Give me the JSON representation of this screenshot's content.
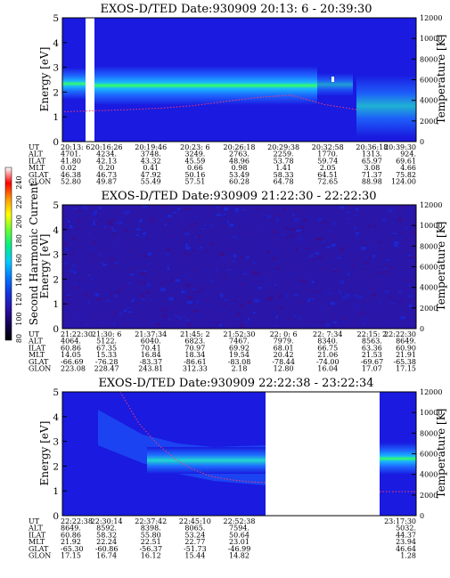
{
  "colors": {
    "background": "#1a1ae0",
    "bright_band": "#33ff66",
    "band_glow": "#19b6ff",
    "temperature_dots": "#ff3b6b",
    "frame": "#000000"
  },
  "colorbar": {
    "label": "Second Harmonic Current",
    "ticks": [
      "240",
      "220",
      "200",
      "180",
      "160",
      "140",
      "120",
      "100",
      "80"
    ],
    "stops": [
      "#ffffff",
      "#ff0000",
      "#ff9900",
      "#ffff00",
      "#66ff33",
      "#00ee88",
      "#00ccff",
      "#0077ff",
      "#1533dd",
      "#2a11a8",
      "#160050",
      "#000000"
    ]
  },
  "chart_data": [
    {
      "type": "heatmap",
      "title": "EXOS-D/TED   Date:930909  20:13: 6 - 20:39:30",
      "ylabel": "Energy [eV]",
      "y2label": "Temperature [K]",
      "ylim": [
        0,
        5
      ],
      "y2lim": [
        0,
        12000
      ],
      "yticks": [
        "0",
        "1",
        "2",
        "3",
        "4",
        "5"
      ],
      "y2ticks": [
        "0",
        "2000",
        "4000",
        "6000",
        "8000",
        "10000",
        "12000"
      ],
      "band_center_ev": 2.2,
      "temperature_trace_k": [
        2900,
        3000,
        3100,
        3250,
        3500,
        3900,
        4300,
        4500,
        3600,
        3100
      ],
      "orbit_table": {
        "labels": [
          "UT",
          "ALT",
          "ILAT",
          "MLT",
          "GLAT",
          "GLON"
        ],
        "columns": [
          [
            "20:13: 6",
            "4701.",
            "41.80",
            "0.02",
            "46.38",
            "52.80"
          ],
          [
            "20:16:26",
            "4234.",
            "42.13",
            "0.20",
            "46.73",
            "49.87"
          ],
          [
            "20:19:46",
            "3748.",
            "43.32",
            "0.41",
            "47.92",
            "55.49"
          ],
          [
            "20:23: 6",
            "3249.",
            "45.59",
            "0.66",
            "50.16",
            "57.51"
          ],
          [
            "20:26:18",
            "2763.",
            "48.96",
            "0.98",
            "53.49",
            "60.28"
          ],
          [
            "20:29:38",
            "2259.",
            "53.78",
            "1.41",
            "58.33",
            "64.78"
          ],
          [
            "20:32:58",
            "1770.",
            "59.74",
            "2.05",
            "64.51",
            "72.65"
          ],
          [
            "20:36:18",
            "1313.",
            "65.97",
            "3.08",
            "71.37",
            "88.98"
          ],
          [
            "20:39:30",
            "924.",
            "69.61",
            "4.66",
            "75.82",
            "124.00"
          ]
        ]
      }
    },
    {
      "type": "heatmap",
      "title": "EXOS-D/TED   Date:930909  21:22:30 - 22:22:30",
      "ylabel": "Energy [eV]",
      "y2label": "Temperature [K]",
      "ylim": [
        0,
        5
      ],
      "y2lim": [
        0,
        12000
      ],
      "yticks": [
        "0",
        "1",
        "2",
        "3",
        "4",
        "5"
      ],
      "y2ticks": [
        "0",
        "2000",
        "4000",
        "6000",
        "8000",
        "10000",
        "12000"
      ],
      "orbit_table": {
        "labels": [
          "UT",
          "ALT",
          "ILAT",
          "MLT",
          "GLAT",
          "GLON"
        ],
        "columns": [
          [
            "21:22:30",
            "4064.",
            "60.86",
            "14.05",
            "-66.69",
            "223.08"
          ],
          [
            "21:30: 6",
            "5122.",
            "67.35",
            "15.33",
            "-76.28",
            "228.47"
          ],
          [
            "21:37:34",
            "6040.",
            "70.41",
            "16.84",
            "-83.37",
            "243.81"
          ],
          [
            "21:45: 2",
            "6823.",
            "70.97",
            "18.34",
            "-86.61",
            "312.33"
          ],
          [
            "21:52:30",
            "7467.",
            "69.92",
            "19.54",
            "-83.08",
            "2.18"
          ],
          [
            "22: 0: 6",
            "7979.",
            "68.01",
            "20.42",
            "-78.44",
            "12.80"
          ],
          [
            "22: 7:34",
            "8340.",
            "66.75",
            "21.06",
            "-74.00",
            "16.04"
          ],
          [
            "22:15: 2",
            "8563.",
            "63.36",
            "21.53",
            "-69.67",
            "17.07"
          ],
          [
            "22:22:30",
            "8649.",
            "60.90",
            "21.91",
            "-65.38",
            "17.15"
          ]
        ]
      }
    },
    {
      "type": "heatmap",
      "title": "EXOS-D/TED   Date:930909  22:22:38 - 23:22:34",
      "ylabel": "Energy [eV]",
      "y2label": "Temperature [K]",
      "ylim": [
        0,
        5
      ],
      "y2lim": [
        0,
        12000
      ],
      "yticks": [
        "0",
        "1",
        "2",
        "3",
        "4",
        "5"
      ],
      "y2ticks": [
        "0",
        "2000",
        "4000",
        "6000",
        "8000",
        "10000",
        "12000"
      ],
      "band_center_ev": 2.3,
      "temperature_trace_k": [
        12000,
        9000,
        7000,
        5500,
        4500,
        3800,
        3500,
        3300,
        3200
      ],
      "orbit_table": {
        "labels": [
          "UT",
          "ALT",
          "ILAT",
          "MLT",
          "GLAT",
          "GLON"
        ],
        "columns": [
          [
            "22:22:38",
            "8649.",
            "60.86",
            "21.92",
            "-65.30",
            "17.15"
          ],
          [
            "22:30:14",
            "8592.",
            "58.32",
            "22.24",
            "-60.86",
            "16.74"
          ],
          [
            "22:37:42",
            "8398.",
            "55.80",
            "22.51",
            "-56.37",
            "16.12"
          ],
          [
            "22:45:10",
            "8065.",
            "53.24",
            "22.77",
            "-51.73",
            "15.44"
          ],
          [
            "22:52:38",
            "7594.",
            "50.64",
            "23.01",
            "-46.99",
            "14.82"
          ],
          [
            "",
            "",
            "",
            "",
            "",
            ""
          ],
          [
            "",
            "",
            "",
            "",
            "",
            ""
          ],
          [
            "",
            "",
            "",
            "",
            "",
            ""
          ],
          [
            "23:17:30",
            "5032.",
            "44.37",
            "23.94",
            "46.64",
            "1.28"
          ]
        ]
      }
    }
  ]
}
